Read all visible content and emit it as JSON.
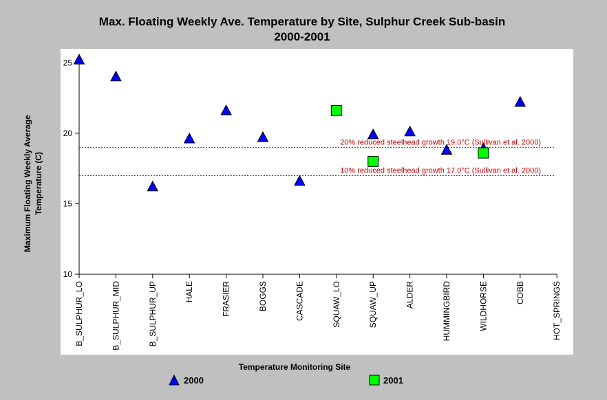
{
  "chart_data": {
    "type": "scatter",
    "title": "Max. Floating Weekly Ave. Temperature by Site, Sulphur Creek Sub-basin",
    "subtitle": "2000-2001",
    "xlabel": "Temperature Monitoring Site",
    "ylabel": "Maximum Floating Weekly Average Temperature (C)",
    "ylabel_lines": [
      "Maximum Floating Weekly Average",
      "Temperature (C)"
    ],
    "ylim": [
      10,
      25.5
    ],
    "yticks": [
      "10",
      "15",
      "20",
      "25"
    ],
    "categories": [
      "B_SULPHUR_LO",
      "B_SULPHUR_MID",
      "B_SULPHUR_UP",
      "HALE",
      "FRASIER",
      "BOGGS",
      "CASCADE",
      "SQUAW_LO",
      "SQUAW_UP",
      "ALDER",
      "HUMMINGBIRD",
      "WILDHORSE",
      "COBB",
      "HOT_SPRINGS"
    ],
    "series": [
      {
        "name": "2000",
        "marker": "triangle",
        "color": "#0000ff",
        "values": [
          25.2,
          24.0,
          16.2,
          19.6,
          21.6,
          19.7,
          16.6,
          null,
          19.9,
          20.1,
          18.8,
          18.9,
          22.2,
          null
        ]
      },
      {
        "name": "2001",
        "marker": "square",
        "color": "#00ff00",
        "values": [
          null,
          null,
          null,
          null,
          null,
          null,
          null,
          21.6,
          18.0,
          null,
          null,
          18.6,
          null,
          null
        ]
      }
    ],
    "reference_lines": [
      {
        "value": 19.0,
        "label": "20% reduced steelhead growth 19.0°C (Sullivan et al. 2000)",
        "color": "#cc0000"
      },
      {
        "value": 17.0,
        "label": "10% reduced steelhead growth 17.0°C (Sullivan et al. 2000)",
        "color": "#cc0000"
      }
    ],
    "grid": false,
    "legend_position": "bottom"
  },
  "colors": {
    "background": "#c0c0c0",
    "plot_background": "#ffffff",
    "reference": "#cc0000"
  }
}
